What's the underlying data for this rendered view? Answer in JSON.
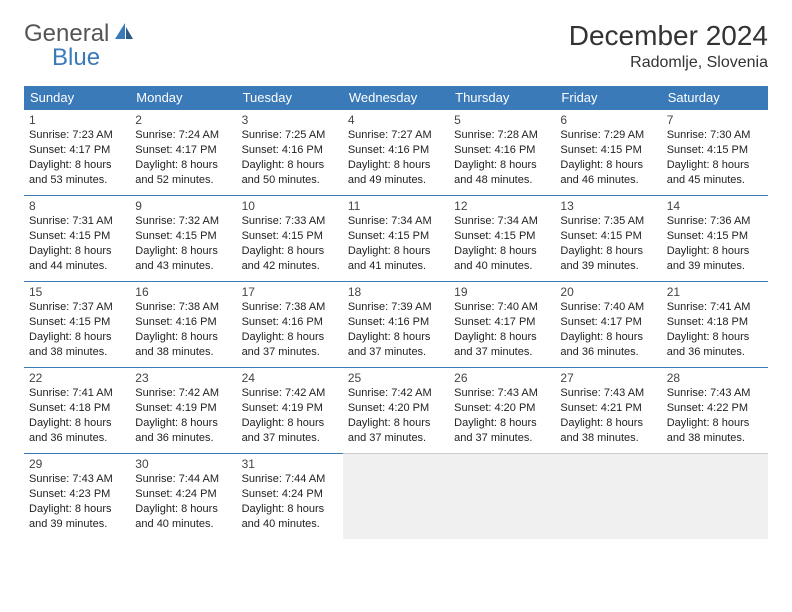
{
  "logo": {
    "text_general": "General",
    "text_blue": "Blue"
  },
  "header": {
    "month_title": "December 2024",
    "location": "Radomlje, Slovenia"
  },
  "colors": {
    "header_bg": "#3a7ab8",
    "header_text": "#ffffff",
    "border": "#3a7ab8",
    "empty_bg": "#f0f0f0",
    "text": "#222222",
    "logo_gray": "#555555",
    "logo_blue": "#3a7ab8"
  },
  "weekdays": [
    "Sunday",
    "Monday",
    "Tuesday",
    "Wednesday",
    "Thursday",
    "Friday",
    "Saturday"
  ],
  "days": [
    {
      "n": "1",
      "sr": "7:23 AM",
      "ss": "4:17 PM",
      "dl": "8 hours and 53 minutes."
    },
    {
      "n": "2",
      "sr": "7:24 AM",
      "ss": "4:17 PM",
      "dl": "8 hours and 52 minutes."
    },
    {
      "n": "3",
      "sr": "7:25 AM",
      "ss": "4:16 PM",
      "dl": "8 hours and 50 minutes."
    },
    {
      "n": "4",
      "sr": "7:27 AM",
      "ss": "4:16 PM",
      "dl": "8 hours and 49 minutes."
    },
    {
      "n": "5",
      "sr": "7:28 AM",
      "ss": "4:16 PM",
      "dl": "8 hours and 48 minutes."
    },
    {
      "n": "6",
      "sr": "7:29 AM",
      "ss": "4:15 PM",
      "dl": "8 hours and 46 minutes."
    },
    {
      "n": "7",
      "sr": "7:30 AM",
      "ss": "4:15 PM",
      "dl": "8 hours and 45 minutes."
    },
    {
      "n": "8",
      "sr": "7:31 AM",
      "ss": "4:15 PM",
      "dl": "8 hours and 44 minutes."
    },
    {
      "n": "9",
      "sr": "7:32 AM",
      "ss": "4:15 PM",
      "dl": "8 hours and 43 minutes."
    },
    {
      "n": "10",
      "sr": "7:33 AM",
      "ss": "4:15 PM",
      "dl": "8 hours and 42 minutes."
    },
    {
      "n": "11",
      "sr": "7:34 AM",
      "ss": "4:15 PM",
      "dl": "8 hours and 41 minutes."
    },
    {
      "n": "12",
      "sr": "7:34 AM",
      "ss": "4:15 PM",
      "dl": "8 hours and 40 minutes."
    },
    {
      "n": "13",
      "sr": "7:35 AM",
      "ss": "4:15 PM",
      "dl": "8 hours and 39 minutes."
    },
    {
      "n": "14",
      "sr": "7:36 AM",
      "ss": "4:15 PM",
      "dl": "8 hours and 39 minutes."
    },
    {
      "n": "15",
      "sr": "7:37 AM",
      "ss": "4:15 PM",
      "dl": "8 hours and 38 minutes."
    },
    {
      "n": "16",
      "sr": "7:38 AM",
      "ss": "4:16 PM",
      "dl": "8 hours and 38 minutes."
    },
    {
      "n": "17",
      "sr": "7:38 AM",
      "ss": "4:16 PM",
      "dl": "8 hours and 37 minutes."
    },
    {
      "n": "18",
      "sr": "7:39 AM",
      "ss": "4:16 PM",
      "dl": "8 hours and 37 minutes."
    },
    {
      "n": "19",
      "sr": "7:40 AM",
      "ss": "4:17 PM",
      "dl": "8 hours and 37 minutes."
    },
    {
      "n": "20",
      "sr": "7:40 AM",
      "ss": "4:17 PM",
      "dl": "8 hours and 36 minutes."
    },
    {
      "n": "21",
      "sr": "7:41 AM",
      "ss": "4:18 PM",
      "dl": "8 hours and 36 minutes."
    },
    {
      "n": "22",
      "sr": "7:41 AM",
      "ss": "4:18 PM",
      "dl": "8 hours and 36 minutes."
    },
    {
      "n": "23",
      "sr": "7:42 AM",
      "ss": "4:19 PM",
      "dl": "8 hours and 36 minutes."
    },
    {
      "n": "24",
      "sr": "7:42 AM",
      "ss": "4:19 PM",
      "dl": "8 hours and 37 minutes."
    },
    {
      "n": "25",
      "sr": "7:42 AM",
      "ss": "4:20 PM",
      "dl": "8 hours and 37 minutes."
    },
    {
      "n": "26",
      "sr": "7:43 AM",
      "ss": "4:20 PM",
      "dl": "8 hours and 37 minutes."
    },
    {
      "n": "27",
      "sr": "7:43 AM",
      "ss": "4:21 PM",
      "dl": "8 hours and 38 minutes."
    },
    {
      "n": "28",
      "sr": "7:43 AM",
      "ss": "4:22 PM",
      "dl": "8 hours and 38 minutes."
    },
    {
      "n": "29",
      "sr": "7:43 AM",
      "ss": "4:23 PM",
      "dl": "8 hours and 39 minutes."
    },
    {
      "n": "30",
      "sr": "7:44 AM",
      "ss": "4:24 PM",
      "dl": "8 hours and 40 minutes."
    },
    {
      "n": "31",
      "sr": "7:44 AM",
      "ss": "4:24 PM",
      "dl": "8 hours and 40 minutes."
    }
  ],
  "labels": {
    "sunrise": "Sunrise:",
    "sunset": "Sunset:",
    "daylight": "Daylight:"
  },
  "grid": {
    "start_offset": 0,
    "trailing_empty": 4
  }
}
